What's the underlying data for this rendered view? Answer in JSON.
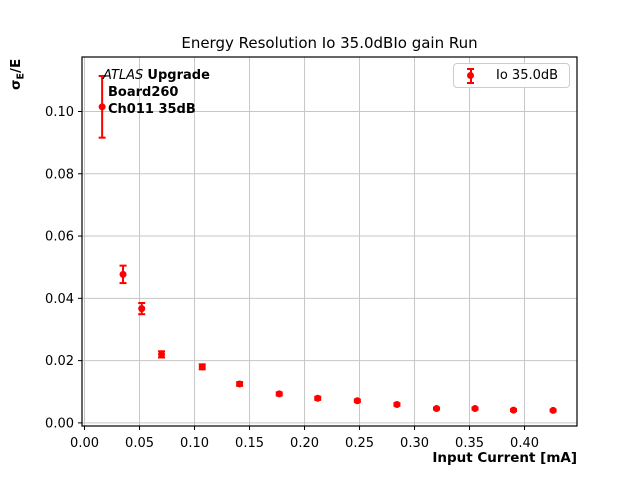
{
  "colors": {
    "series": "#ff0000",
    "grid": "#c6c6c6",
    "axis": "#000000",
    "text": "#000000",
    "legend_border": "#cccccc",
    "background": "#ffffff"
  },
  "annotation": {
    "line1_italic": "ATLAS",
    "line1_bold": "Upgrade",
    "line2": "Board260",
    "line3": "Ch011 35dB"
  },
  "chart_data": {
    "type": "scatter",
    "title": "Energy Resolution Io 35.0dBIo gain Run",
    "xlabel": "Input Current [mA]",
    "ylabel": "σE/E",
    "ylabel_parts": {
      "sigma": "σ",
      "sub": "E",
      "rest": "/E"
    },
    "xlim": [
      -0.0023,
      0.4477
    ],
    "ylim": [
      -0.001,
      0.1175
    ],
    "grid": true,
    "legend_position": "upper right",
    "xticks": [
      0.0,
      0.05,
      0.1,
      0.15,
      0.2,
      0.25,
      0.3,
      0.35,
      0.4
    ],
    "xtick_labels": [
      "0.00",
      "0.05",
      "0.10",
      "0.15",
      "0.20",
      "0.25",
      "0.30",
      "0.35",
      "0.40"
    ],
    "yticks": [
      0.0,
      0.02,
      0.04,
      0.06,
      0.08,
      0.1
    ],
    "ytick_labels": [
      "0.00",
      "0.02",
      "0.04",
      "0.06",
      "0.08",
      "0.10"
    ],
    "series": [
      {
        "name": "Io 35.0dB",
        "color": "#ff0000",
        "marker": "circle",
        "x": [
          0.016,
          0.035,
          0.052,
          0.07,
          0.107,
          0.141,
          0.177,
          0.212,
          0.248,
          0.284,
          0.32,
          0.355,
          0.39,
          0.426
        ],
        "y": [
          0.1015,
          0.0477,
          0.0367,
          0.022,
          0.018,
          0.0125,
          0.0093,
          0.0079,
          0.0071,
          0.0059,
          0.0046,
          0.0046,
          0.0041,
          0.004
        ],
        "yerr": [
          0.0099,
          0.0028,
          0.0018,
          0.001,
          0.0008,
          0.0006,
          0.0005,
          0.0005,
          0.0004,
          0.0004,
          0.0003,
          0.0003,
          0.0003,
          0.0003
        ]
      }
    ]
  }
}
